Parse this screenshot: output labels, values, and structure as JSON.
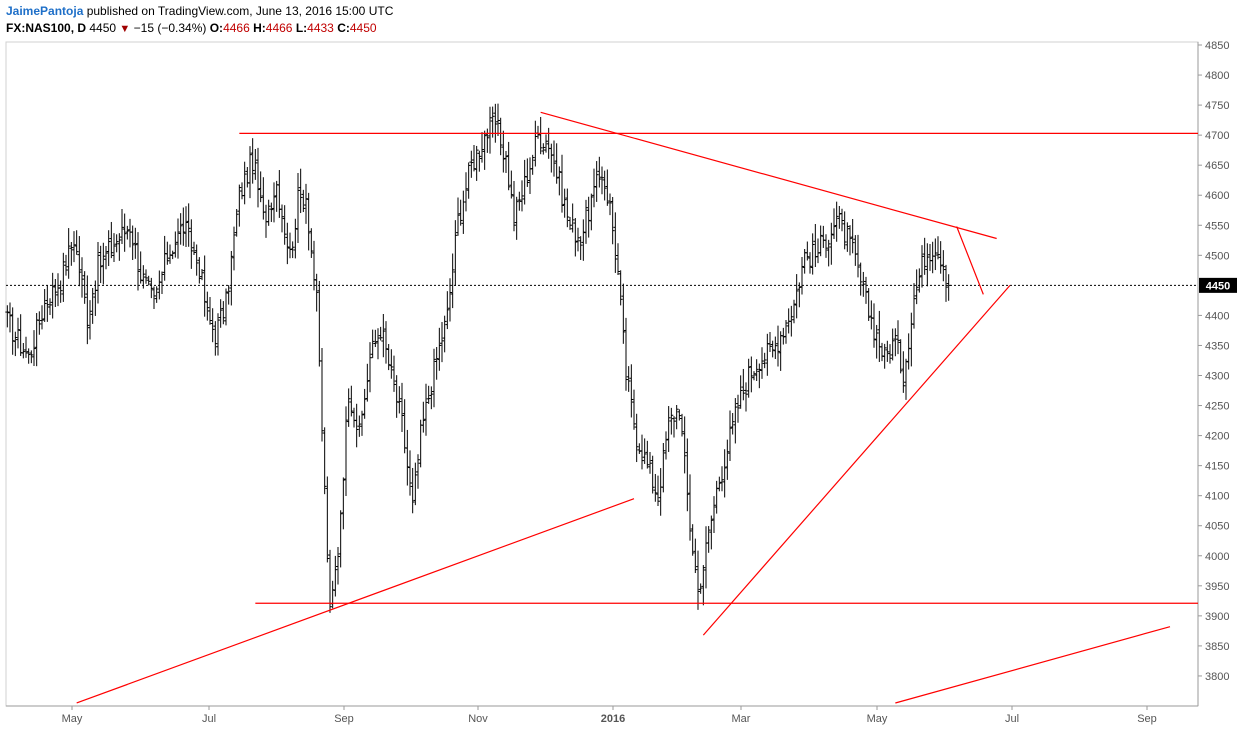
{
  "header": {
    "author": "JaimePantoja",
    "published": " published on TradingView.com, June 13, 2016 15:00 UTC",
    "symbol": "FX:NAS100, D",
    "last": "4450",
    "change_arrow": "▼",
    "change": "−15 (−0.34%)",
    "o_label": "O:",
    "o_value": "4466",
    "h_label": "H:",
    "h_value": "4466",
    "l_label": "L:",
    "l_value": "4433",
    "c_label": "C:",
    "c_value": "4450"
  },
  "colors": {
    "bars": "#000000",
    "trendlines": "#ff0000",
    "price_tag": "#000000",
    "author": "#1e6fc8"
  },
  "chart_data": {
    "type": "ohlc",
    "interval": "daily",
    "x_axis_labels": [
      "May",
      "Jul",
      "Sep",
      "Nov",
      "2016",
      "Mar",
      "May",
      "Jul",
      "Sep"
    ],
    "y_ticks": [
      3800,
      3850,
      3900,
      3950,
      4000,
      4050,
      4100,
      4150,
      4200,
      4250,
      4300,
      4350,
      4400,
      4450,
      4500,
      4550,
      4600,
      4650,
      4700,
      4750,
      4800,
      4850
    ],
    "ylim": [
      3750,
      4855
    ],
    "last_price": 4450,
    "last_price_label": "4450",
    "grid": false,
    "bar_waypoints": [
      [
        0,
        4390
      ],
      [
        8,
        4330
      ],
      [
        14,
        4420
      ],
      [
        20,
        4460
      ],
      [
        25,
        4530
      ],
      [
        30,
        4400
      ],
      [
        34,
        4480
      ],
      [
        40,
        4520
      ],
      [
        46,
        4550
      ],
      [
        50,
        4470
      ],
      [
        55,
        4420
      ],
      [
        60,
        4500
      ],
      [
        66,
        4550
      ],
      [
        72,
        4480
      ],
      [
        75,
        4400
      ],
      [
        78,
        4370
      ],
      [
        82,
        4420
      ],
      [
        87,
        4600
      ],
      [
        92,
        4660
      ],
      [
        96,
        4560
      ],
      [
        101,
        4620
      ],
      [
        106,
        4500
      ],
      [
        109,
        4590
      ],
      [
        112,
        4600
      ],
      [
        116,
        4420
      ],
      [
        121,
        3900
      ],
      [
        124,
        4010
      ],
      [
        128,
        4280
      ],
      [
        132,
        4200
      ],
      [
        136,
        4330
      ],
      [
        140,
        4380
      ],
      [
        144,
        4300
      ],
      [
        148,
        4220
      ],
      [
        152,
        4080
      ],
      [
        155,
        4200
      ],
      [
        160,
        4310
      ],
      [
        165,
        4400
      ],
      [
        169,
        4560
      ],
      [
        174,
        4650
      ],
      [
        179,
        4700
      ],
      [
        183,
        4720
      ],
      [
        187,
        4660
      ],
      [
        190,
        4560
      ],
      [
        194,
        4620
      ],
      [
        199,
        4700
      ],
      [
        203,
        4690
      ],
      [
        207,
        4620
      ],
      [
        211,
        4550
      ],
      [
        215,
        4530
      ],
      [
        219,
        4590
      ],
      [
        223,
        4640
      ],
      [
        226,
        4580
      ],
      [
        229,
        4470
      ],
      [
        232,
        4300
      ],
      [
        236,
        4200
      ],
      [
        240,
        4150
      ],
      [
        244,
        4100
      ],
      [
        248,
        4220
      ],
      [
        252,
        4250
      ],
      [
        256,
        4050
      ],
      [
        259,
        3940
      ],
      [
        262,
        4010
      ],
      [
        266,
        4110
      ],
      [
        270,
        4180
      ],
      [
        274,
        4250
      ],
      [
        278,
        4300
      ],
      [
        282,
        4330
      ],
      [
        287,
        4340
      ],
      [
        291,
        4380
      ],
      [
        295,
        4420
      ],
      [
        299,
        4500
      ],
      [
        303,
        4500
      ],
      [
        307,
        4530
      ],
      [
        311,
        4560
      ],
      [
        315,
        4530
      ],
      [
        318,
        4490
      ],
      [
        322,
        4420
      ],
      [
        325,
        4380
      ],
      [
        329,
        4330
      ],
      [
        333,
        4360
      ],
      [
        336,
        4300
      ],
      [
        340,
        4430
      ],
      [
        344,
        4500
      ],
      [
        348,
        4520
      ],
      [
        351,
        4490
      ],
      [
        353,
        4440
      ]
    ],
    "trendlines": [
      {
        "kind": "horizontal",
        "y": 4703,
        "x_from_bar": 87,
        "x_to_bar": 447
      },
      {
        "kind": "horizontal",
        "y": 3921,
        "x_from_bar": 93,
        "x_to_bar": 447
      },
      {
        "kind": "line",
        "from": [
          26,
          3755
        ],
        "to": [
          235,
          4095
        ]
      },
      {
        "kind": "line",
        "from": [
          200,
          4738
        ],
        "to": [
          371,
          4528
        ]
      },
      {
        "kind": "line",
        "from": [
          261,
          3868
        ],
        "to": [
          376,
          4450
        ]
      },
      {
        "kind": "line",
        "from": [
          356,
          4548
        ],
        "to": [
          366,
          4435
        ]
      },
      {
        "kind": "line",
        "from": [
          333,
          3755
        ],
        "to": [
          436,
          3882
        ]
      }
    ]
  }
}
